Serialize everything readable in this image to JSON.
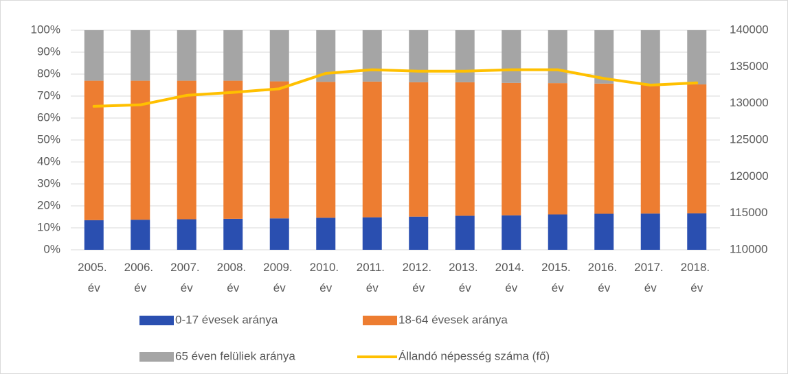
{
  "chart_data": {
    "type": "bar",
    "stacked": true,
    "categories": [
      "2005. év",
      "2006. év",
      "2007. év",
      "2008. év",
      "2009. év",
      "2010. év",
      "2011. év",
      "2012. év",
      "2013. év",
      "2014. év",
      "2015. év",
      "2016. év",
      "2017. év",
      "2018. év"
    ],
    "series": [
      {
        "name": "0-17 évesek aránya",
        "color": "#2a4fb0",
        "type": "bar",
        "values": [
          13.5,
          13.7,
          13.9,
          14.1,
          14.3,
          14.6,
          14.8,
          15.1,
          15.5,
          15.7,
          16.1,
          16.4,
          16.5,
          16.6
        ]
      },
      {
        "name": "18-64 évesek aránya",
        "color": "#ed7d31",
        "type": "bar",
        "values": [
          63.5,
          63.3,
          63.1,
          62.9,
          62.4,
          61.9,
          61.8,
          61.2,
          60.8,
          60.3,
          59.8,
          59.3,
          59.0,
          58.7
        ]
      },
      {
        "name": "65 éven felüliek aránya",
        "color": "#a5a5a5",
        "type": "bar",
        "values": [
          23.0,
          23.0,
          23.0,
          23.0,
          23.3,
          23.5,
          23.4,
          23.7,
          23.7,
          24.0,
          24.1,
          24.3,
          24.5,
          24.7
        ]
      },
      {
        "name": "Állandó népesség száma (fő)",
        "color": "#ffc000",
        "type": "line",
        "axis": "y2",
        "values": [
          129600,
          129800,
          131100,
          131500,
          132000,
          134100,
          134600,
          134400,
          134400,
          134600,
          134600,
          133400,
          132500,
          132800
        ]
      }
    ],
    "ylim": [
      0,
      100
    ],
    "yticks": [
      {
        "value": 0,
        "label": "0%"
      },
      {
        "value": 10,
        "label": "10%"
      },
      {
        "value": 20,
        "label": "20%"
      },
      {
        "value": 30,
        "label": "30%"
      },
      {
        "value": 40,
        "label": "40%"
      },
      {
        "value": 50,
        "label": "50%"
      },
      {
        "value": 60,
        "label": "60%"
      },
      {
        "value": 70,
        "label": "70%"
      },
      {
        "value": 80,
        "label": "80%"
      },
      {
        "value": 90,
        "label": "90%"
      },
      {
        "value": 100,
        "label": "100%"
      }
    ],
    "y2lim": [
      110000,
      140000
    ],
    "y2ticks": [
      110000,
      115000,
      120000,
      125000,
      130000,
      135000,
      140000
    ],
    "grid": true,
    "legend": "bottom"
  }
}
